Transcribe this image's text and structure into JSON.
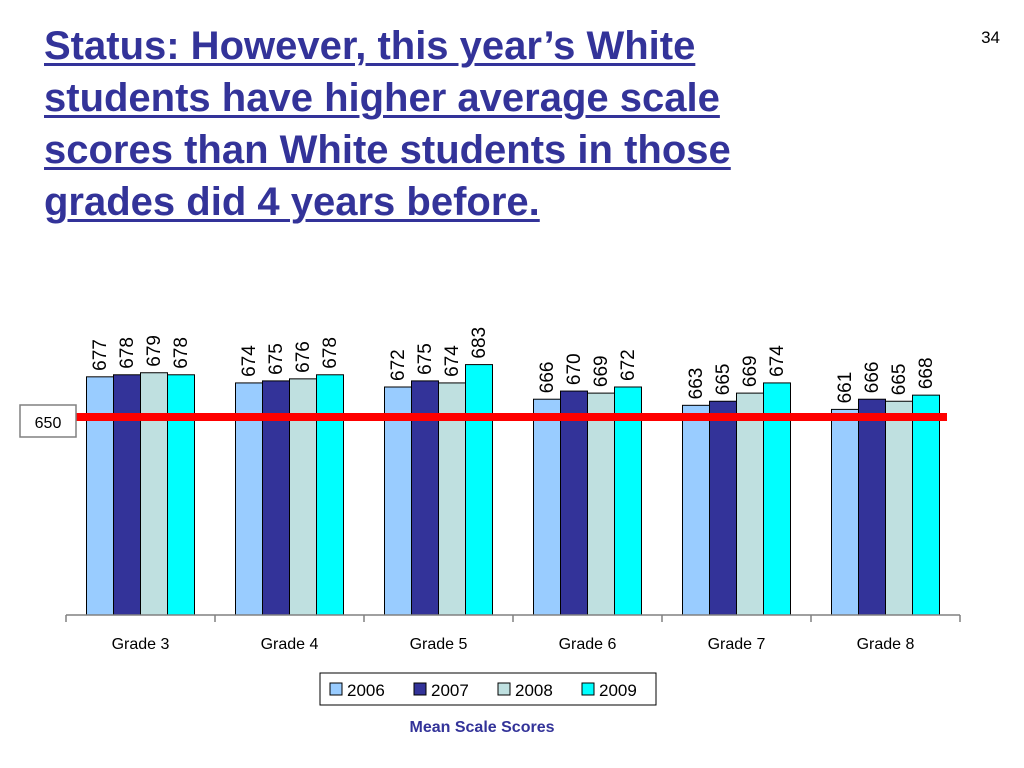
{
  "slide": {
    "title": "Status: However, this year’s White students have higher average scale scores than White students in those grades did 4 years before.",
    "number": "34"
  },
  "chart_data": {
    "type": "bar",
    "categories": [
      "Grade 3",
      "Grade 4",
      "Grade 5",
      "Grade 6",
      "Grade 7",
      "Grade 8"
    ],
    "series": [
      {
        "name": "2006",
        "color": "#99CCFF",
        "values": [
          677,
          674,
          672,
          666,
          663,
          661
        ]
      },
      {
        "name": "2007",
        "color": "#333399",
        "values": [
          678,
          675,
          675,
          670,
          665,
          666
        ]
      },
      {
        "name": "2008",
        "color": "#BFE0E0",
        "values": [
          679,
          676,
          674,
          669,
          669,
          665
        ]
      },
      {
        "name": "2009",
        "color": "#00FFFF",
        "values": [
          678,
          678,
          683,
          672,
          674,
          668
        ]
      }
    ],
    "reference_line": {
      "value": 650,
      "label": "650",
      "color": "#FF0000"
    },
    "ylim": [
      560,
      700
    ],
    "legend_position": "bottom",
    "grid": false,
    "footer": "Mean Scale Scores"
  }
}
